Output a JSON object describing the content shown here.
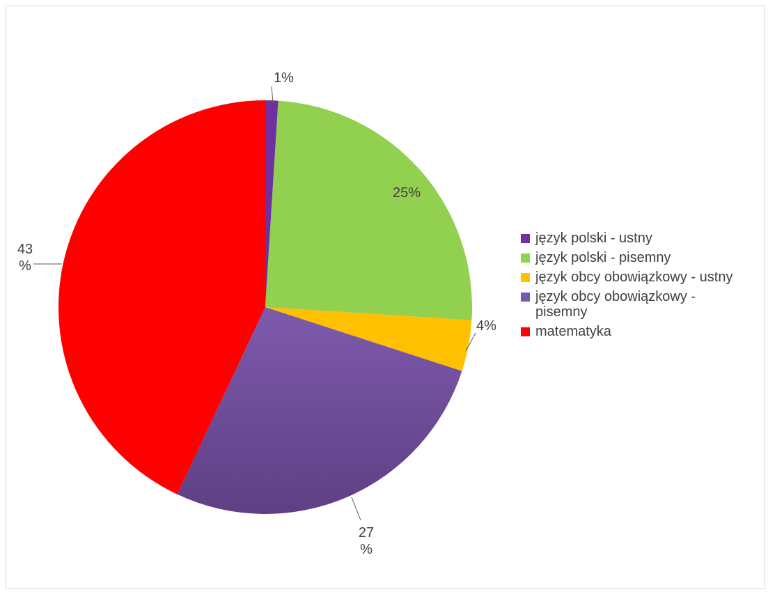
{
  "chart_data": {
    "type": "pie",
    "title": "",
    "categories": [
      "język polski - ustny",
      "język polski - pisemny",
      "język obcy obowiązkowy - ustny",
      "język obcy obowiązkowy - pisemny",
      "matematyka"
    ],
    "values": [
      1,
      25,
      4,
      27,
      43
    ],
    "labels": [
      [
        "1%"
      ],
      [
        "25%"
      ],
      [
        "4%"
      ],
      [
        "27",
        "%"
      ],
      [
        "43",
        "%"
      ]
    ],
    "colors": [
      "#7030a0",
      "#92d050",
      "#ffc000",
      "#7a5aa8",
      "#ff0000"
    ],
    "legend_position": "right"
  }
}
